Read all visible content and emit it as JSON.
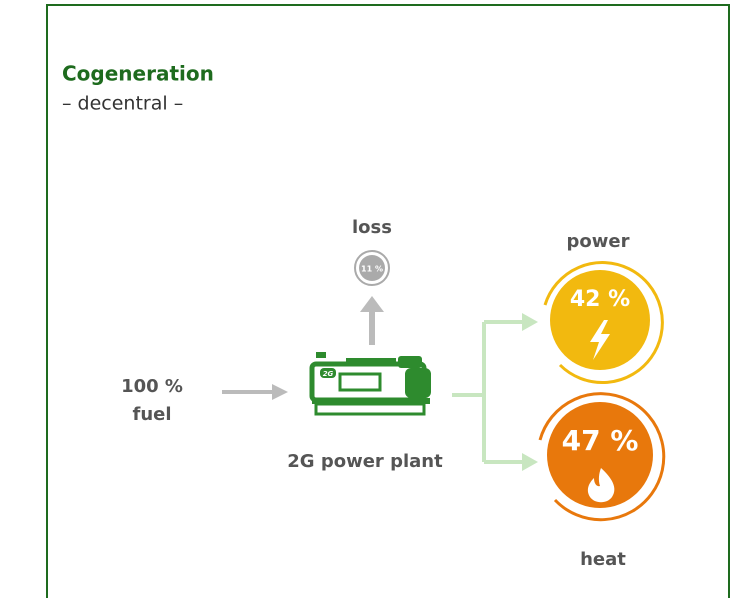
{
  "header": {
    "title": "Cogeneration",
    "subtitle": "– decentral –"
  },
  "nodes": {
    "loss": {
      "label": "loss",
      "value": "11 %"
    },
    "fuel": {
      "value": "100 %",
      "label": "fuel"
    },
    "plant": {
      "label": "2G power plant",
      "logo": "2G"
    },
    "power": {
      "label": "power",
      "value": "42 %"
    },
    "heat": {
      "label": "heat",
      "value": "47 %"
    }
  }
}
